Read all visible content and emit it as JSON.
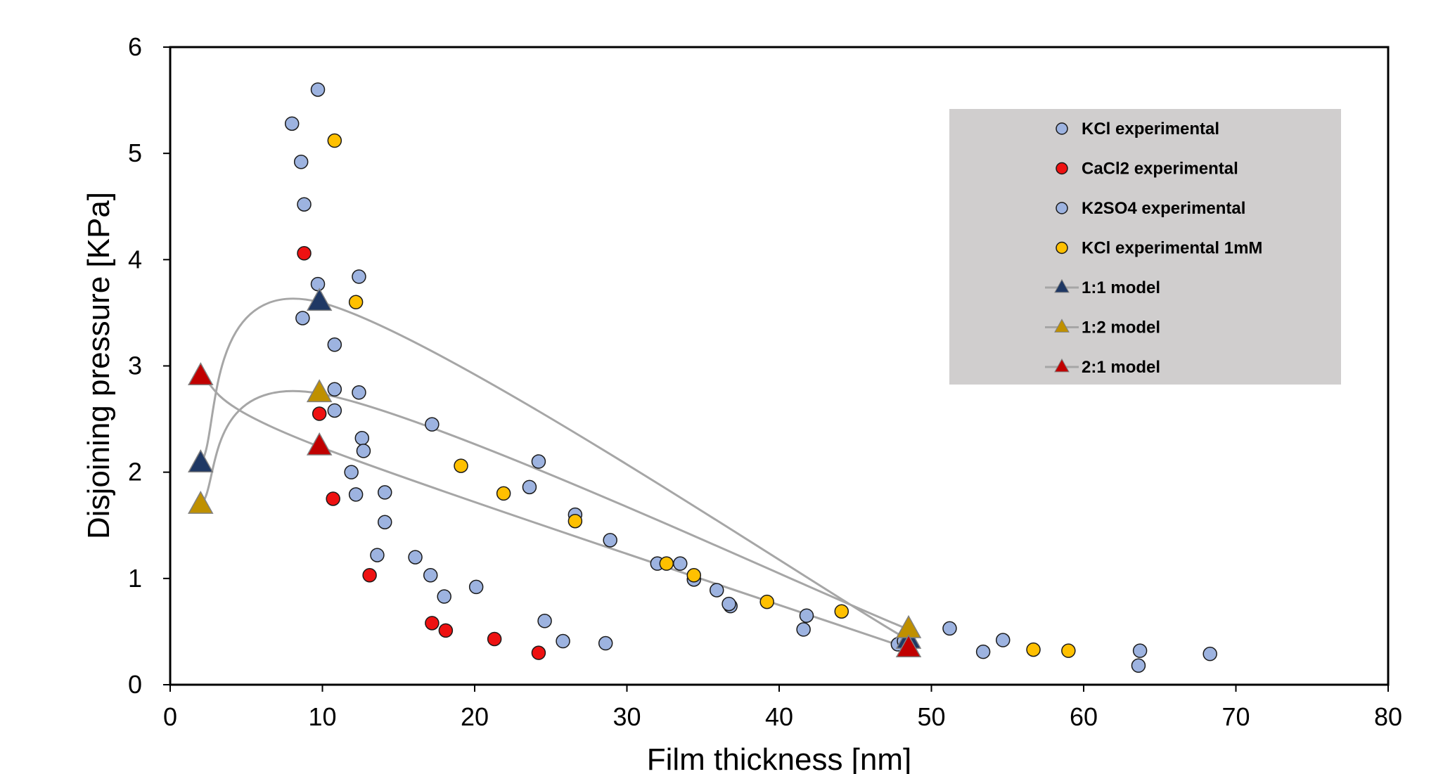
{
  "chart_data": {
    "type": "scatter",
    "xlabel": "Film thickness [nm]",
    "ylabel": "Disjoining pressure [KPa]",
    "xlim": [
      0,
      80
    ],
    "ylim": [
      0,
      6
    ],
    "x_ticks": [
      0,
      10,
      20,
      30,
      40,
      50,
      60,
      70,
      80
    ],
    "y_ticks": [
      0,
      1,
      2,
      3,
      4,
      5,
      6
    ],
    "grid": false,
    "legend_position": "top-right",
    "colors": {
      "blue_marker": "#9db3e0",
      "red_marker": "#ee1111",
      "yellow_marker": "#ffc000",
      "model_line": "#a6a6a6",
      "tri_1_1": "#1f3864",
      "tri_1_2": "#bf9000",
      "tri_2_1": "#c00000",
      "legend_bg": "#d0cece"
    },
    "series": [
      {
        "name": "KCl experimental",
        "marker": "circle",
        "color": "#9db3e0",
        "points": [
          [
            8,
            5.28
          ],
          [
            9.7,
            5.6
          ],
          [
            8.6,
            4.92
          ],
          [
            8.8,
            4.52
          ],
          [
            9.7,
            3.77
          ],
          [
            8.7,
            3.45
          ],
          [
            10.8,
            3.2
          ],
          [
            10.8,
            2.78
          ],
          [
            12.4,
            2.75
          ],
          [
            10.8,
            2.58
          ],
          [
            12.6,
            2.32
          ],
          [
            12.7,
            2.2
          ],
          [
            11.9,
            2.0
          ],
          [
            12.2,
            1.79
          ],
          [
            14.1,
            1.81
          ],
          [
            14.1,
            1.53
          ],
          [
            13.6,
            1.22
          ],
          [
            16.1,
            1.2
          ],
          [
            17.1,
            1.03
          ],
          [
            18.0,
            0.83
          ],
          [
            20.1,
            0.92
          ],
          [
            24.6,
            0.6
          ],
          [
            25.8,
            0.41
          ],
          [
            28.6,
            0.39
          ],
          [
            47.8,
            0.38
          ],
          [
            51.2,
            0.53
          ],
          [
            53.4,
            0.31
          ],
          [
            54.7,
            0.42
          ],
          [
            63.7,
            0.32
          ],
          [
            63.6,
            0.18
          ],
          [
            68.3,
            0.29
          ],
          [
            12.4,
            3.84
          ]
        ]
      },
      {
        "name": "CaCl2 experimental",
        "marker": "circle",
        "color": "#ee1111",
        "points": [
          [
            8.8,
            4.06
          ],
          [
            9.8,
            2.55
          ],
          [
            10.7,
            1.75
          ],
          [
            13.1,
            1.03
          ],
          [
            17.2,
            0.58
          ],
          [
            18.1,
            0.51
          ],
          [
            21.3,
            0.43
          ],
          [
            24.2,
            0.3
          ]
        ]
      },
      {
        "name": "K2SO4 experimental",
        "marker": "circle",
        "color": "#9db3e0",
        "points": [
          [
            17.2,
            2.45
          ],
          [
            24.2,
            2.1
          ],
          [
            23.6,
            1.86
          ],
          [
            26.6,
            1.6
          ],
          [
            28.9,
            1.36
          ],
          [
            32.0,
            1.14
          ],
          [
            33.5,
            1.14
          ],
          [
            34.4,
            0.99
          ],
          [
            35.9,
            0.89
          ],
          [
            36.8,
            0.74
          ],
          [
            36.7,
            0.76
          ],
          [
            41.8,
            0.65
          ],
          [
            41.6,
            0.52
          ],
          [
            48.2,
            0.41
          ]
        ]
      },
      {
        "name": "KCl experimental 1mM",
        "marker": "circle",
        "color": "#ffc000",
        "points": [
          [
            10.8,
            5.12
          ],
          [
            12.2,
            3.6
          ],
          [
            19.1,
            2.06
          ],
          [
            21.9,
            1.8
          ],
          [
            26.6,
            1.54
          ],
          [
            32.6,
            1.14
          ],
          [
            34.4,
            1.03
          ],
          [
            39.2,
            0.78
          ],
          [
            44.1,
            0.69
          ],
          [
            56.7,
            0.33
          ],
          [
            59.0,
            0.32
          ]
        ]
      },
      {
        "name": "1:1 model",
        "marker": "triangle",
        "line": true,
        "color": "#1f3864",
        "points": [
          [
            2,
            2.08
          ],
          [
            9.8,
            3.6
          ],
          [
            48.5,
            0.42
          ]
        ]
      },
      {
        "name": "1:2 model",
        "marker": "triangle",
        "line": true,
        "color": "#bf9000",
        "points": [
          [
            2,
            1.69
          ],
          [
            9.8,
            2.74
          ],
          [
            48.5,
            0.52
          ]
        ]
      },
      {
        "name": "2:1 model",
        "marker": "triangle",
        "line": true,
        "color": "#c00000",
        "points": [
          [
            2,
            2.9
          ],
          [
            9.8,
            2.24
          ],
          [
            48.5,
            0.34
          ]
        ]
      }
    ]
  }
}
